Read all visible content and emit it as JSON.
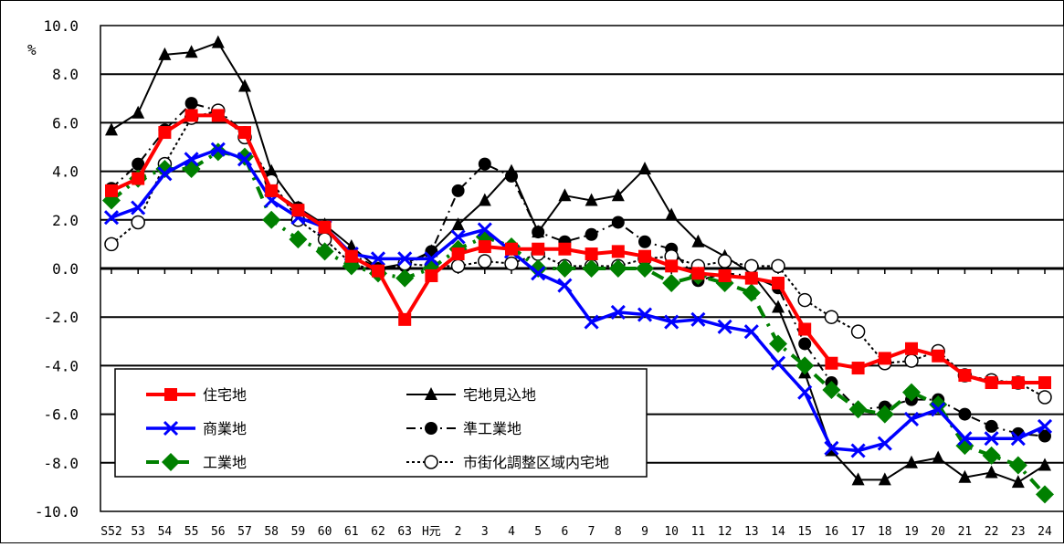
{
  "chart_data": {
    "type": "line",
    "ylabel": "%",
    "ylim": [
      -10,
      10
    ],
    "y_ticks": [
      "10.0",
      "8.0",
      "6.0",
      "4.0",
      "2.0",
      "0.0",
      "-2.0",
      "-4.0",
      "-6.0",
      "-8.0",
      "-10.0"
    ],
    "categories": [
      "S52",
      "53",
      "54",
      "55",
      "56",
      "57",
      "58",
      "59",
      "60",
      "61",
      "62",
      "63",
      "H元",
      "2",
      "3",
      "4",
      "5",
      "6",
      "7",
      "8",
      "9",
      "10",
      "11",
      "12",
      "13",
      "14",
      "15",
      "16",
      "17",
      "18",
      "19",
      "20",
      "21",
      "22",
      "23",
      "24"
    ],
    "grid": true,
    "legend_position": "bottom-left",
    "series": [
      {
        "name": "住宅地",
        "color": "#ff0000",
        "marker": "square",
        "values": [
          3.2,
          3.7,
          5.6,
          6.3,
          6.3,
          5.6,
          3.2,
          2.4,
          1.7,
          0.5,
          -0.1,
          -2.1,
          -0.3,
          0.6,
          0.9,
          0.8,
          0.8,
          0.8,
          0.6,
          0.7,
          0.5,
          0.1,
          -0.2,
          -0.3,
          -0.4,
          -0.6,
          -2.5,
          -3.9,
          -4.1,
          -3.7,
          -3.3,
          -3.6,
          -4.4,
          -4.7,
          -4.7,
          -4.7
        ]
      },
      {
        "name": "商業地",
        "color": "#0000ff",
        "marker": "x",
        "values": [
          2.1,
          2.5,
          3.9,
          4.5,
          4.9,
          4.5,
          2.8,
          2.1,
          1.7,
          0.6,
          0.4,
          0.4,
          0.4,
          1.3,
          1.6,
          0.7,
          -0.2,
          -0.7,
          -2.2,
          -1.8,
          -1.9,
          -2.2,
          -2.1,
          -2.4,
          -2.6,
          -3.9,
          -5.1,
          -7.4,
          -7.5,
          -7.2,
          -6.2,
          -5.8,
          -7.0,
          -7.0,
          -7.0,
          -6.5
        ]
      },
      {
        "name": "工業地",
        "color": "#008000",
        "marker": "diamond",
        "values": [
          2.8,
          3.7,
          4.1,
          4.1,
          4.8,
          4.6,
          2.0,
          1.2,
          0.7,
          0.1,
          -0.2,
          -0.4,
          0.0,
          0.8,
          1.3,
          0.9,
          0.0,
          0.0,
          0.0,
          0.0,
          0.0,
          -0.6,
          -0.3,
          -0.6,
          -1.0,
          -3.1,
          -4.0,
          -5.0,
          -5.8,
          -6.0,
          -5.1,
          -5.6,
          -7.3,
          -7.7,
          -8.1,
          -9.3
        ]
      },
      {
        "name": "宅地見込地",
        "color": "#000000",
        "marker": "triangle",
        "values": [
          5.7,
          6.4,
          8.8,
          8.9,
          9.3,
          7.5,
          4.0,
          2.5,
          1.8,
          0.9,
          0.0,
          0.2,
          0.7,
          1.8,
          2.8,
          4.0,
          1.5,
          3.0,
          2.8,
          3.0,
          4.1,
          2.2,
          1.1,
          0.5,
          -0.2,
          -1.6,
          -4.3,
          -7.5,
          -8.7,
          -8.7,
          -8.0,
          -7.8,
          -8.6,
          -8.4,
          -8.8,
          -8.1
        ]
      },
      {
        "name": "準工業地",
        "color": "#000000",
        "marker": "circle",
        "values": [
          3.3,
          4.3,
          5.7,
          6.8,
          6.5,
          5.6,
          3.2,
          2.5,
          1.7,
          0.6,
          0.0,
          0.1,
          0.7,
          3.2,
          4.3,
          3.8,
          1.5,
          1.1,
          1.4,
          1.9,
          1.1,
          0.8,
          -0.5,
          -0.2,
          -0.3,
          -0.8,
          -3.1,
          -4.7,
          -5.8,
          -5.7,
          -5.4,
          -5.4,
          -6.0,
          -6.5,
          -6.8,
          -6.9
        ]
      },
      {
        "name": "市街化調整区域内宅地",
        "color": "#000000",
        "marker": "open-circle",
        "values": [
          1.0,
          1.9,
          4.3,
          6.2,
          6.5,
          5.4,
          3.6,
          2.0,
          1.2,
          0.2,
          -0.1,
          0.2,
          0.1,
          0.1,
          0.3,
          0.2,
          0.6,
          0.1,
          0.1,
          0.1,
          0.4,
          0.5,
          0.1,
          0.3,
          0.1,
          0.1,
          -1.3,
          -2.0,
          -2.6,
          -3.9,
          -3.8,
          -3.4,
          -4.4,
          -4.6,
          -4.7,
          -5.3
        ]
      }
    ]
  }
}
